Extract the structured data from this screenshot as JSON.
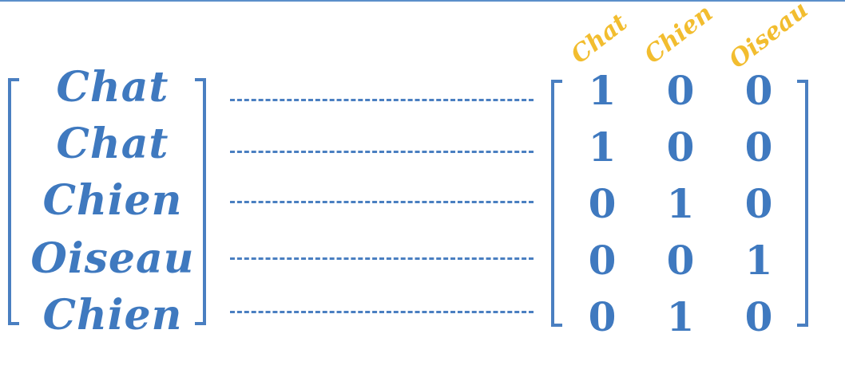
{
  "diagram": {
    "categories": [
      "Chat",
      "Chien",
      "Oiseau"
    ],
    "words": [
      "Chat",
      "Chat",
      "Chien",
      "Oiseau",
      "Chien"
    ],
    "matrix": [
      [
        "1",
        "0",
        "0"
      ],
      [
        "1",
        "0",
        "0"
      ],
      [
        "0",
        "1",
        "0"
      ],
      [
        "0",
        "0",
        "1"
      ],
      [
        "0",
        "1",
        "0"
      ]
    ],
    "colors": {
      "text": "#3f79bf",
      "header": "#f2bd2f",
      "line": "#4a7fc1"
    }
  }
}
